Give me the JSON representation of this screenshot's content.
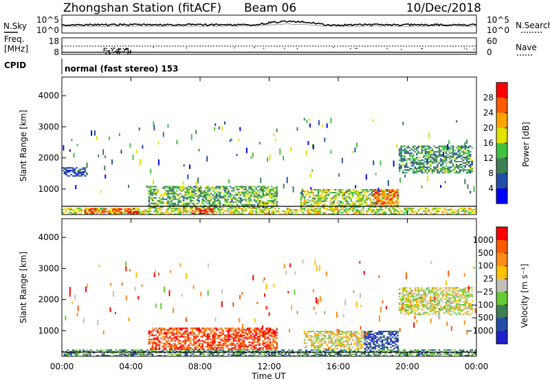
{
  "header": {
    "station": "Zhongshan Station (fitACF)",
    "beam": "Beam 06",
    "date": "10/Dec/2018"
  },
  "noise_panel": {
    "left_label": "N.Sky",
    "right_label": "N.Search",
    "left_ticks": [
      "10^5",
      "10^0"
    ],
    "right_ticks": [
      "10^5",
      "10^0"
    ]
  },
  "freq_panel": {
    "left_label_line1": "Freq.",
    "left_label_line2": "[MHz]",
    "right_label": "Nave",
    "left_ticks": [
      "18",
      "8"
    ],
    "right_ticks": [
      "60",
      "0"
    ]
  },
  "cpid": {
    "label": "CPID",
    "text": "normal (fast stereo) 153"
  },
  "colors": {
    "power": [
      "#0000ff",
      "#224ea8",
      "#3f7f55",
      "#40c23d",
      "#e2e200",
      "#ffa500",
      "#ff5a00",
      "#ff0000"
    ],
    "velocity": [
      "#ff0000",
      "#ff5a00",
      "#ff8c1a",
      "#ffc000",
      "#c0c0b8",
      "#66cc33",
      "#3f7f55",
      "#224ea8",
      "#2020cc"
    ]
  },
  "chart_data": [
    {
      "type": "heatmap",
      "ylabel": "Slant Range [km]",
      "yticks": [
        "1000",
        "2000",
        "3000",
        "4000"
      ],
      "ylim": [
        180,
        4600
      ],
      "xlim": [
        "00:00",
        "24:00"
      ],
      "colorbar": {
        "label": "Power [dB]",
        "ticks": [
          "4",
          "8",
          "12",
          "16",
          "20",
          "24",
          "28"
        ],
        "range": [
          0,
          30
        ]
      },
      "regions": [
        {
          "t0": 0.0,
          "t1": 24.0,
          "r0": 180,
          "r1": 400,
          "level": 0.55
        },
        {
          "t0": 1.3,
          "t1": 4.5,
          "r0": 200,
          "r1": 380,
          "level": 0.85
        },
        {
          "t0": 7.5,
          "t1": 8.8,
          "r0": 200,
          "r1": 380,
          "level": 0.9
        },
        {
          "t0": 5.0,
          "t1": 12.5,
          "r0": 380,
          "r1": 1100,
          "level": 0.4
        },
        {
          "t0": 13.8,
          "t1": 19.5,
          "r0": 400,
          "r1": 1000,
          "level": 0.5
        },
        {
          "t0": 18.0,
          "t1": 19.5,
          "r0": 500,
          "r1": 1000,
          "level": 0.8
        },
        {
          "t0": 19.5,
          "t1": 23.8,
          "r0": 1500,
          "r1": 2400,
          "level": 0.35
        },
        {
          "t0": 0.0,
          "t1": 1.5,
          "r0": 1400,
          "r1": 1700,
          "level": 0.2
        }
      ]
    },
    {
      "type": "heatmap",
      "ylabel": "Slant Range [km]",
      "xlabel": "Time UT",
      "yticks": [
        "1000",
        "2000",
        "3000",
        "4000"
      ],
      "xticks": [
        "00:00",
        "04:00",
        "08:00",
        "12:00",
        "16:00",
        "20:00",
        "00:00"
      ],
      "ylim": [
        180,
        4600
      ],
      "xlim": [
        "00:00",
        "24:00"
      ],
      "colorbar": {
        "label": "Velocity [m s⁻¹]",
        "ticks": [
          "1000",
          "500",
          "100",
          "25",
          "−25",
          "−100",
          "−500",
          "−1000"
        ],
        "range": [
          -1200,
          1200
        ]
      },
      "regions": [
        {
          "t0": 0.0,
          "t1": 24.0,
          "r0": 180,
          "r1": 400,
          "level": 0.7
        },
        {
          "t0": 5.0,
          "t1": 12.5,
          "r0": 380,
          "r1": 1100,
          "level": 0.15
        },
        {
          "t0": 14.0,
          "t1": 17.5,
          "r0": 400,
          "r1": 1000,
          "level": 0.45
        },
        {
          "t0": 17.5,
          "t1": 19.5,
          "r0": 400,
          "r1": 1000,
          "level": 0.85
        },
        {
          "t0": 19.5,
          "t1": 23.8,
          "r0": 1500,
          "r1": 2400,
          "level": 0.5
        }
      ]
    }
  ]
}
